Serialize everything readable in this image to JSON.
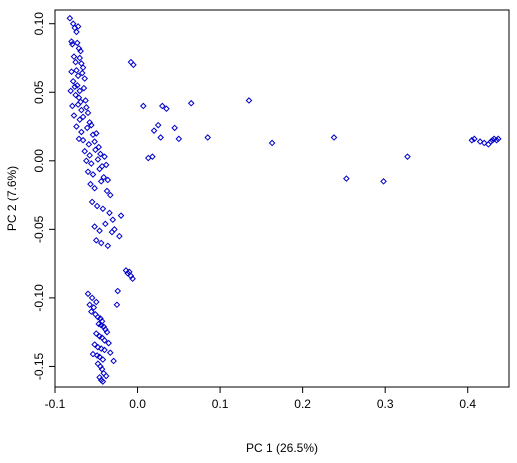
{
  "chart_data": {
    "type": "scatter",
    "title": "",
    "xlabel": "PC 1 (26.5%)",
    "ylabel": "PC 2 (7.6%)",
    "xlim": [
      -0.1,
      0.45
    ],
    "ylim": [
      -0.165,
      0.11
    ],
    "xticks": [
      -0.1,
      0.0,
      0.1,
      0.2,
      0.3,
      0.4
    ],
    "xtick_labels": [
      "-0.1",
      "0.0",
      "0.1",
      "0.2",
      "0.3",
      "0.4"
    ],
    "yticks": [
      -0.15,
      -0.1,
      -0.05,
      0.0,
      0.05,
      0.1
    ],
    "ytick_labels": [
      "-0.15",
      "-0.10",
      "-0.05",
      "0.00",
      "0.05",
      "0.10"
    ],
    "grid": false,
    "legend": "none",
    "marker_color": "#0000cc",
    "marker": "open-diamond",
    "series": [
      {
        "x": [
          -0.082,
          -0.078,
          -0.076,
          -0.074,
          -0.072,
          -0.08,
          -0.079,
          -0.073,
          -0.071,
          -0.069,
          -0.077,
          -0.075,
          -0.07,
          -0.068,
          -0.066,
          -0.08,
          -0.074,
          -0.072,
          -0.067,
          -0.064,
          -0.078,
          -0.076,
          -0.073,
          -0.07,
          -0.065,
          -0.081,
          -0.075,
          -0.071,
          -0.069,
          -0.063,
          -0.079,
          -0.072,
          -0.068,
          -0.062,
          -0.06,
          -0.077,
          -0.07,
          -0.066,
          -0.058,
          -0.056,
          -0.074,
          -0.068,
          -0.061,
          -0.054,
          -0.05,
          -0.071,
          -0.066,
          -0.059,
          -0.052,
          -0.047,
          -0.064,
          -0.058,
          -0.051,
          -0.045,
          -0.04,
          -0.062,
          -0.056,
          -0.048,
          -0.043,
          -0.038,
          -0.06,
          -0.054,
          -0.046,
          -0.041,
          -0.036,
          -0.057,
          -0.052,
          -0.044,
          -0.037,
          -0.033,
          -0.055,
          -0.049,
          -0.042,
          -0.034,
          -0.03,
          -0.052,
          -0.046,
          -0.039,
          -0.031,
          -0.022,
          -0.05,
          -0.044,
          -0.036,
          -0.028,
          -0.02,
          -0.014,
          -0.012,
          -0.01,
          -0.008,
          -0.006,
          -0.06,
          -0.055,
          -0.05,
          -0.058,
          -0.053,
          -0.056,
          -0.051,
          -0.048,
          -0.045,
          -0.043,
          -0.047,
          -0.044,
          -0.041,
          -0.039,
          -0.037,
          -0.05,
          -0.046,
          -0.043,
          -0.04,
          -0.035,
          -0.052,
          -0.048,
          -0.044,
          -0.04,
          -0.033,
          -0.054,
          -0.049,
          -0.046,
          -0.042,
          -0.029,
          -0.048,
          -0.045,
          -0.043,
          -0.041,
          -0.038,
          -0.046,
          -0.044,
          -0.042,
          -0.025,
          -0.024,
          -0.008,
          -0.005,
          0.007,
          0.013,
          0.018,
          0.02,
          0.025,
          0.028,
          0.03,
          0.035,
          0.045,
          0.05,
          0.065,
          0.085,
          0.135,
          0.163,
          0.238,
          0.253,
          0.298,
          0.327,
          0.405,
          0.408,
          0.415,
          0.42,
          0.425,
          0.428,
          0.43,
          0.432,
          0.435,
          0.437
        ],
        "y": [
          0.104,
          0.1,
          0.097,
          0.094,
          0.098,
          0.087,
          0.085,
          0.086,
          0.082,
          0.08,
          0.076,
          0.072,
          0.075,
          0.071,
          0.068,
          0.065,
          0.066,
          0.062,
          0.064,
          0.06,
          0.058,
          0.054,
          0.055,
          0.051,
          0.053,
          0.051,
          0.048,
          0.046,
          0.043,
          0.044,
          0.04,
          0.041,
          0.037,
          0.039,
          0.035,
          0.033,
          0.03,
          0.032,
          0.028,
          0.026,
          0.025,
          0.021,
          0.024,
          0.019,
          0.02,
          0.016,
          0.015,
          0.012,
          0.014,
          0.01,
          0.007,
          0.004,
          0.008,
          0.005,
          0.003,
          0.0,
          -0.002,
          0.001,
          -0.004,
          -0.003,
          -0.008,
          -0.01,
          -0.006,
          -0.012,
          -0.014,
          -0.017,
          -0.02,
          -0.015,
          -0.022,
          -0.025,
          -0.03,
          -0.033,
          -0.035,
          -0.038,
          -0.043,
          -0.048,
          -0.051,
          -0.046,
          -0.052,
          -0.055,
          -0.058,
          -0.06,
          -0.062,
          -0.05,
          -0.04,
          -0.08,
          -0.082,
          -0.081,
          -0.084,
          -0.086,
          -0.097,
          -0.1,
          -0.103,
          -0.105,
          -0.107,
          -0.11,
          -0.112,
          -0.114,
          -0.115,
          -0.117,
          -0.119,
          -0.12,
          -0.121,
          -0.123,
          -0.125,
          -0.126,
          -0.128,
          -0.129,
          -0.131,
          -0.133,
          -0.134,
          -0.136,
          -0.137,
          -0.138,
          -0.14,
          -0.141,
          -0.142,
          -0.143,
          -0.145,
          -0.146,
          -0.148,
          -0.15,
          -0.152,
          -0.155,
          -0.157,
          -0.158,
          -0.16,
          -0.161,
          -0.105,
          -0.095,
          0.072,
          0.07,
          0.04,
          0.002,
          0.003,
          0.022,
          0.026,
          0.017,
          0.04,
          0.038,
          0.024,
          0.016,
          0.042,
          0.017,
          0.044,
          0.013,
          0.017,
          -0.013,
          -0.015,
          0.003,
          0.015,
          0.016,
          0.014,
          0.013,
          0.012,
          0.014,
          0.015,
          0.016,
          0.015,
          0.016
        ]
      }
    ]
  }
}
